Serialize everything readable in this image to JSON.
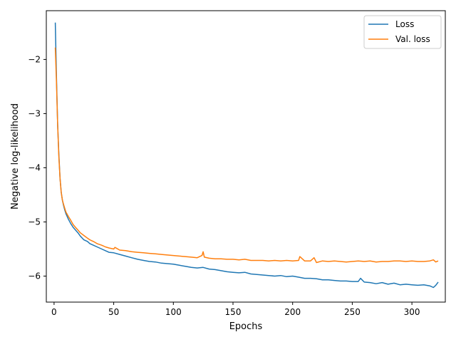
{
  "chart_data": {
    "type": "line",
    "title": "",
    "xlabel": "Epochs",
    "ylabel": "Negative log-likelihood",
    "xlim": [
      -6.5,
      328
    ],
    "ylim": [
      -6.48,
      -1.1
    ],
    "xticks": [
      0,
      50,
      100,
      150,
      200,
      250,
      300
    ],
    "yticks": [
      -6,
      -5,
      -4,
      -3,
      -2
    ],
    "xtick_labels": [
      "0",
      "50",
      "100",
      "150",
      "200",
      "250",
      "300"
    ],
    "ytick_labels": [
      "−6",
      "−5",
      "−4",
      "−3",
      "−2"
    ],
    "grid": false,
    "legend_position": "top-right",
    "series": [
      {
        "name": "Loss",
        "color": "#1f77b4",
        "x": [
          1,
          2,
          3,
          4,
          5,
          6,
          7,
          8,
          9,
          10,
          12,
          14,
          16,
          18,
          20,
          22,
          25,
          28,
          30,
          33,
          36,
          40,
          43,
          46,
          50,
          55,
          60,
          65,
          70,
          75,
          80,
          85,
          90,
          95,
          100,
          105,
          110,
          115,
          120,
          125,
          130,
          135,
          140,
          145,
          150,
          155,
          160,
          165,
          170,
          175,
          180,
          185,
          190,
          195,
          200,
          205,
          210,
          215,
          220,
          225,
          230,
          235,
          240,
          245,
          250,
          255,
          257,
          260,
          265,
          270,
          275,
          280,
          285,
          290,
          295,
          300,
          305,
          310,
          315,
          318,
          320,
          322
        ],
        "y": [
          -1.32,
          -2.3,
          -3.2,
          -3.75,
          -4.2,
          -4.45,
          -4.6,
          -4.7,
          -4.78,
          -4.85,
          -4.95,
          -5.03,
          -5.1,
          -5.15,
          -5.2,
          -5.26,
          -5.33,
          -5.36,
          -5.4,
          -5.43,
          -5.46,
          -5.5,
          -5.53,
          -5.56,
          -5.57,
          -5.6,
          -5.63,
          -5.66,
          -5.69,
          -5.71,
          -5.73,
          -5.74,
          -5.76,
          -5.77,
          -5.78,
          -5.8,
          -5.82,
          -5.84,
          -5.85,
          -5.84,
          -5.87,
          -5.88,
          -5.9,
          -5.92,
          -5.93,
          -5.94,
          -5.93,
          -5.96,
          -5.97,
          -5.98,
          -5.99,
          -6.0,
          -5.99,
          -6.01,
          -6.0,
          -6.02,
          -6.04,
          -6.04,
          -6.05,
          -6.07,
          -6.07,
          -6.08,
          -6.09,
          -6.09,
          -6.1,
          -6.1,
          -6.04,
          -6.11,
          -6.12,
          -6.14,
          -6.12,
          -6.15,
          -6.13,
          -6.16,
          -6.15,
          -6.16,
          -6.17,
          -6.16,
          -6.18,
          -6.21,
          -6.17,
          -6.11
        ]
      },
      {
        "name": "Val. loss",
        "color": "#ff7f0e",
        "x": [
          1,
          2,
          3,
          4,
          5,
          6,
          7,
          8,
          9,
          10,
          12,
          14,
          16,
          18,
          20,
          22,
          25,
          28,
          30,
          33,
          36,
          40,
          43,
          46,
          50,
          51,
          55,
          60,
          65,
          70,
          75,
          80,
          85,
          90,
          95,
          100,
          105,
          110,
          115,
          120,
          124,
          125,
          126,
          130,
          135,
          140,
          145,
          150,
          155,
          160,
          165,
          170,
          175,
          180,
          185,
          190,
          195,
          200,
          205,
          206,
          210,
          215,
          218,
          220,
          225,
          230,
          235,
          240,
          245,
          250,
          255,
          260,
          265,
          270,
          275,
          280,
          285,
          290,
          295,
          300,
          305,
          310,
          315,
          318,
          320,
          322
        ],
        "y": [
          -1.78,
          -2.4,
          -3.2,
          -3.8,
          -4.2,
          -4.45,
          -4.6,
          -4.68,
          -4.75,
          -4.82,
          -4.9,
          -4.97,
          -5.05,
          -5.1,
          -5.15,
          -5.2,
          -5.25,
          -5.3,
          -5.33,
          -5.36,
          -5.4,
          -5.43,
          -5.46,
          -5.48,
          -5.5,
          -5.47,
          -5.52,
          -5.53,
          -5.55,
          -5.56,
          -5.57,
          -5.58,
          -5.59,
          -5.6,
          -5.61,
          -5.62,
          -5.63,
          -5.64,
          -5.65,
          -5.66,
          -5.62,
          -5.55,
          -5.65,
          -5.67,
          -5.68,
          -5.68,
          -5.69,
          -5.69,
          -5.7,
          -5.69,
          -5.71,
          -5.71,
          -5.71,
          -5.72,
          -5.71,
          -5.72,
          -5.71,
          -5.72,
          -5.71,
          -5.64,
          -5.72,
          -5.72,
          -5.66,
          -5.75,
          -5.72,
          -5.73,
          -5.72,
          -5.73,
          -5.74,
          -5.73,
          -5.72,
          -5.73,
          -5.72,
          -5.74,
          -5.73,
          -5.73,
          -5.72,
          -5.72,
          -5.73,
          -5.72,
          -5.73,
          -5.73,
          -5.72,
          -5.7,
          -5.74,
          -5.72
        ]
      }
    ]
  }
}
